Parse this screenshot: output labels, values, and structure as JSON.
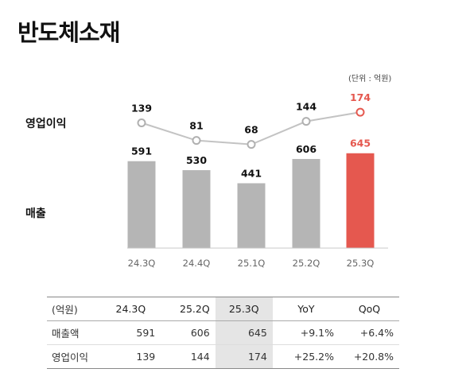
{
  "page": {
    "title": "반도체소재",
    "unit_note": "(단위 : 억원)"
  },
  "labels": {
    "operating_profit": "영업이익",
    "revenue": "매출"
  },
  "colors": {
    "bar_default": "#b5b5b5",
    "highlight": "#e5584f",
    "line": "#c3c3c3",
    "text": "#111111"
  },
  "chart_data": {
    "type": "bar",
    "categories": [
      "24.3Q",
      "24.4Q",
      "25.1Q",
      "25.2Q",
      "25.3Q"
    ],
    "highlight_index": 4,
    "series": [
      {
        "name": "매출",
        "type": "bar",
        "values": [
          591,
          530,
          441,
          606,
          645
        ]
      },
      {
        "name": "영업이익",
        "type": "line",
        "values": [
          139,
          81,
          68,
          144,
          174
        ]
      }
    ]
  },
  "table": {
    "headers": [
      "(억원)",
      "24.3Q",
      "25.2Q",
      "25.3Q",
      "YoY",
      "QoQ"
    ],
    "rows": [
      {
        "label": "매출액",
        "cells": [
          "591",
          "606",
          "645",
          "+9.1%",
          "+6.4%"
        ]
      },
      {
        "label": "영업이익",
        "cells": [
          "139",
          "144",
          "174",
          "+25.2%",
          "+20.8%"
        ]
      }
    ]
  }
}
